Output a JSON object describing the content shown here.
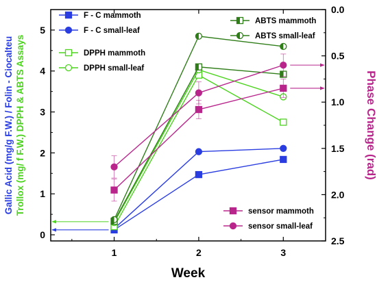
{
  "colors": {
    "fc": "#2a3de0",
    "dpph": "#4bd31d",
    "abts": "#2e7d18",
    "sensor": "#b8268c",
    "axis": "#000000"
  },
  "chart_data": {
    "type": "line",
    "xlabel": "Week",
    "ylabel_left": {
      "line1": "Gallic Acid (mg/g F.W.) / Folin - Ciocalteu",
      "line2": "Trollox (mg/ f F.W.) DPPH & ABTS Assays"
    },
    "ylabel_right": "Phase Change (rad)",
    "x": [
      1,
      2,
      3
    ],
    "x_ticks": [
      "1",
      "2",
      "3"
    ],
    "xlim": [
      0.25,
      3.5
    ],
    "ylim_left": [
      -0.15,
      5.5
    ],
    "y_ticks_left": [
      "0",
      "1",
      "2",
      "3",
      "4",
      "5"
    ],
    "ylim_right_reversed": [
      0.0,
      2.5
    ],
    "y_ticks_right": [
      "0.0",
      "0.5",
      "1.0",
      "1.5",
      "2.0",
      "2.5"
    ],
    "series": [
      {
        "name": "F - C mammoth",
        "axis": "left",
        "color_key": "fc",
        "marker": "square-filled",
        "values": [
          0.12,
          1.47,
          1.84
        ]
      },
      {
        "name": "F - C small-leaf",
        "axis": "left",
        "color_key": "fc",
        "marker": "circle-filled",
        "values": [
          0.15,
          2.03,
          2.11
        ]
      },
      {
        "name": "DPPH mammoth",
        "axis": "left",
        "color_key": "dpph",
        "marker": "square-open",
        "values": [
          0.2,
          3.9,
          2.75
        ]
      },
      {
        "name": "DPPH small-leaf",
        "axis": "left",
        "color_key": "dpph",
        "marker": "circle-open",
        "values": [
          0.3,
          4.03,
          3.37
        ]
      },
      {
        "name": "ABTS mammoth",
        "axis": "left",
        "color_key": "abts",
        "marker": "square-half",
        "values": [
          0.33,
          4.1,
          3.92
        ]
      },
      {
        "name": "ABTS small-leaf",
        "axis": "left",
        "color_key": "abts",
        "marker": "circle-half",
        "values": [
          0.37,
          4.85,
          4.6
        ]
      },
      {
        "name": "sensor mammoth",
        "axis": "right",
        "color_key": "sensor",
        "marker": "square-filled",
        "values": [
          1.95,
          1.08,
          0.85
        ],
        "errors": [
          0.12,
          0.1,
          0.1
        ]
      },
      {
        "name": "sensor small-leaf",
        "axis": "right",
        "color_key": "sensor",
        "marker": "circle-filled",
        "values": [
          1.7,
          0.9,
          0.6
        ],
        "errors": [
          0.12,
          0.12,
          0.12
        ]
      }
    ],
    "legends": [
      {
        "position": "top-left",
        "items": [
          "F - C mammoth",
          "F - C small-leaf"
        ]
      },
      {
        "position": "upper-left",
        "items": [
          "DPPH mammoth",
          "DPPH small-leaf"
        ]
      },
      {
        "position": "top-right",
        "items": [
          "ABTS mammoth",
          "ABTS small-leaf"
        ]
      },
      {
        "position": "bottom-right",
        "items": [
          "sensor mammoth",
          "sensor small-leaf"
        ]
      }
    ],
    "axis_pointers": [
      {
        "series_color_key": "fc",
        "axis": "left",
        "direction": "left",
        "y_value": 0.12
      },
      {
        "series_color_key": "dpph",
        "axis": "left",
        "direction": "left",
        "y_value": 0.32
      },
      {
        "series_color_key": "sensor",
        "axis": "right",
        "direction": "right",
        "y_value": 0.6
      },
      {
        "series_color_key": "sensor",
        "axis": "right",
        "direction": "right",
        "y_value": 0.85
      }
    ],
    "grid": false
  }
}
